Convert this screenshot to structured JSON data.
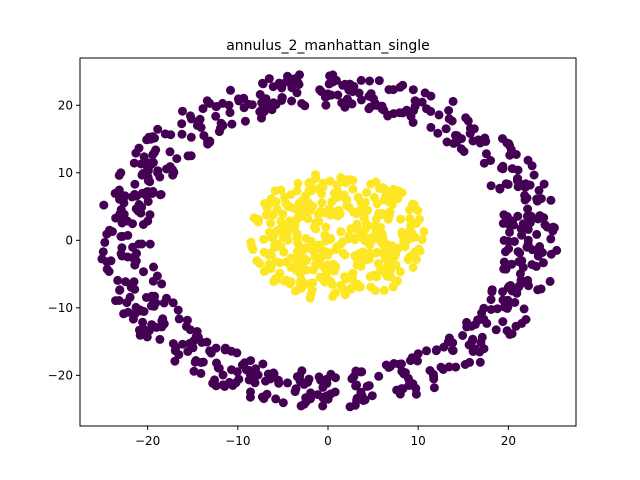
{
  "chart_data": {
    "type": "scatter",
    "title": "annulus_2_manhattan_single",
    "xlabel": "",
    "ylabel": "",
    "xlim": [
      -27.5,
      27.5
    ],
    "ylim": [
      -27.5,
      27.0
    ],
    "x_ticks": [
      -20,
      -10,
      0,
      10,
      20
    ],
    "y_ticks": [
      -20,
      -10,
      0,
      10,
      20
    ],
    "grid": false,
    "legend": "none",
    "series": [
      {
        "color": "#440154",
        "shape": "annulus",
        "center": [
          0,
          0
        ],
        "rx_range": [
          19.5,
          25.5
        ],
        "ry_range": [
          19.5,
          24.8
        ],
        "count": 650,
        "gaps_deg": [
          [
            -78,
            -72
          ],
          [
            93,
            97
          ]
        ]
      },
      {
        "color": "#fde725",
        "shape": "disk",
        "center": [
          1,
          0.5
        ],
        "rx": 10,
        "ry": 9.5,
        "count": 380
      }
    ]
  }
}
